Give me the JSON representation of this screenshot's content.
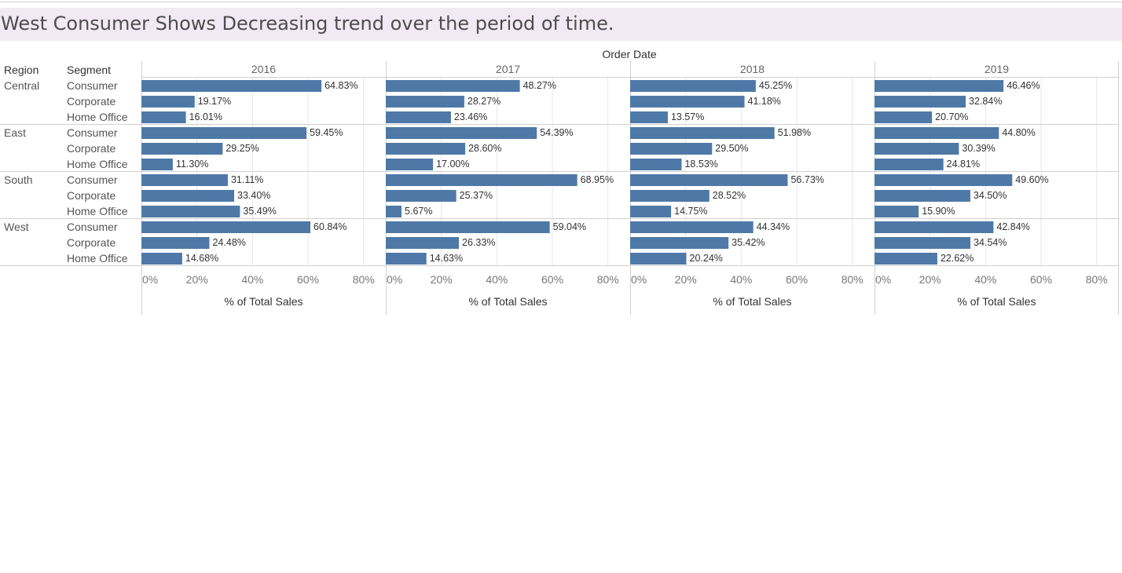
{
  "title": "West  Consumer Shows Decreasing trend over the period of time.",
  "chart_data": {
    "type": "bar",
    "orientation": "horizontal",
    "column_header": "Order Date",
    "row_headers": [
      "Region",
      "Segment"
    ],
    "years": [
      "2016",
      "2017",
      "2018",
      "2019"
    ],
    "regions": [
      {
        "name": "Central",
        "segments": [
          "Consumer",
          "Corporate",
          "Home Office"
        ]
      },
      {
        "name": "East",
        "segments": [
          "Consumer",
          "Corporate",
          "Home Office"
        ]
      },
      {
        "name": "South",
        "segments": [
          "Consumer",
          "Corporate",
          "Home Office"
        ]
      },
      {
        "name": "West",
        "segments": [
          "Consumer",
          "Corporate",
          "Home Office"
        ]
      }
    ],
    "values": {
      "2016": [
        64.83,
        19.17,
        16.01,
        59.45,
        29.25,
        11.3,
        31.11,
        33.4,
        35.49,
        60.84,
        24.48,
        14.68
      ],
      "2017": [
        48.27,
        28.27,
        23.46,
        54.39,
        28.6,
        17.0,
        68.95,
        25.37,
        5.67,
        59.04,
        26.33,
        14.63
      ],
      "2018": [
        45.25,
        41.18,
        13.57,
        51.98,
        29.5,
        18.53,
        56.73,
        28.52,
        14.75,
        44.34,
        35.42,
        20.24
      ],
      "2019": [
        46.46,
        32.84,
        20.7,
        44.8,
        30.39,
        24.81,
        49.6,
        34.5,
        15.9,
        42.84,
        34.54,
        22.62
      ]
    },
    "value_labels": {
      "2016": [
        "64.83%",
        "19.17%",
        "16.01%",
        "59.45%",
        "29.25%",
        "11.30%",
        "31.11%",
        "33.40%",
        "35.49%",
        "60.84%",
        "24.48%",
        "14.68%"
      ],
      "2017": [
        "48.27%",
        "28.27%",
        "23.46%",
        "54.39%",
        "28.60%",
        "17.00%",
        "68.95%",
        "25.37%",
        "5.67%",
        "59.04%",
        "26.33%",
        "14.63%"
      ],
      "2018": [
        "45.25%",
        "41.18%",
        "13.57%",
        "51.98%",
        "29.50%",
        "18.53%",
        "56.73%",
        "28.52%",
        "14.75%",
        "44.34%",
        "35.42%",
        "20.24%"
      ],
      "2019": [
        "46.46%",
        "32.84%",
        "20.70%",
        "44.80%",
        "30.39%",
        "24.81%",
        "49.60%",
        "34.50%",
        "15.90%",
        "42.84%",
        "34.54%",
        "22.62%"
      ]
    },
    "xlabel": "% of Total Sales",
    "xlim": [
      0,
      88
    ],
    "xticks": [
      0,
      20,
      40,
      60,
      80
    ],
    "xtick_labels": [
      "0%",
      "20%",
      "40%",
      "60%",
      "80%"
    ],
    "bar_color": "#4e79a7",
    "grid": true
  }
}
